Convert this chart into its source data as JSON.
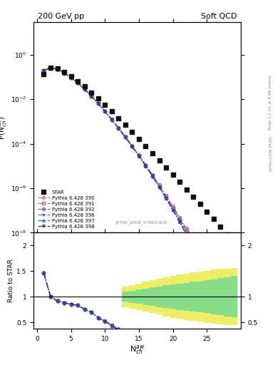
{
  "title_left": "200 GeV pp",
  "title_right": "Soft QCD",
  "ylabel_main": "P(N$_{ch}^{aw}$)",
  "ylabel_ratio": "Ratio to STAR",
  "xlabel": "N$_{ch}^{aw}$",
  "right_label_top": "Rivet 3.1.10, ≥ 3.4M events",
  "right_label_bot": "[arXiv:1306.3436]",
  "ref_label": "(STAR_2008_S7869363)",
  "ylim_main": [
    1e-08,
    30
  ],
  "ylim_ratio": [
    0.38,
    2.25
  ],
  "xlim": [
    -0.5,
    30
  ],
  "star_x": [
    1,
    2,
    3,
    4,
    5,
    6,
    7,
    8,
    9,
    10,
    11,
    12,
    13,
    14,
    15,
    16,
    17,
    18,
    19,
    20,
    21,
    22,
    23,
    24,
    25,
    26,
    27,
    28,
    29
  ],
  "star_y": [
    0.13,
    0.27,
    0.24,
    0.17,
    0.11,
    0.065,
    0.037,
    0.02,
    0.011,
    0.0055,
    0.0028,
    0.0014,
    0.00069,
    0.00034,
    0.000165,
    8e-05,
    3.8e-05,
    1.8e-05,
    8.5e-06,
    4e-06,
    1.9e-06,
    8.9e-07,
    4.2e-07,
    1.95e-07,
    9e-08,
    4.1e-08,
    1.85e-08,
    8.3e-09,
    3.7e-09
  ],
  "py390_x": [
    1,
    2,
    3,
    4,
    5,
    6,
    7,
    8,
    9,
    10,
    11,
    12,
    13,
    14,
    15,
    16,
    17,
    18,
    19,
    20,
    21,
    22,
    23,
    24
  ],
  "py390_y": [
    0.19,
    0.27,
    0.22,
    0.15,
    0.094,
    0.054,
    0.028,
    0.014,
    0.0065,
    0.0029,
    0.00125,
    0.00052,
    0.00021,
    8.2e-05,
    3.1e-05,
    1.14e-05,
    4e-06,
    1.4e-06,
    4.7e-07,
    1.55e-07,
    5e-08,
    1.55e-08,
    4.5e-09,
    1.2e-09
  ],
  "py391_x": [
    1,
    2,
    3,
    4,
    5,
    6,
    7,
    8,
    9,
    10,
    11,
    12,
    13,
    14,
    15,
    16,
    17,
    18,
    19,
    20,
    21,
    22,
    23
  ],
  "py391_y": [
    0.19,
    0.27,
    0.22,
    0.15,
    0.094,
    0.054,
    0.028,
    0.014,
    0.0065,
    0.0029,
    0.00125,
    0.00051,
    0.000205,
    8e-05,
    3e-05,
    1.1e-05,
    3.8e-06,
    1.3e-06,
    4.3e-07,
    1.4e-07,
    4.4e-08,
    1.35e-08,
    3.9e-09
  ],
  "py392_x": [
    1,
    2,
    3,
    4,
    5,
    6,
    7,
    8,
    9,
    10,
    11,
    12,
    13,
    14,
    15,
    16,
    17,
    18,
    19,
    20,
    21,
    22,
    23,
    24
  ],
  "py392_y": [
    0.19,
    0.27,
    0.22,
    0.15,
    0.094,
    0.054,
    0.028,
    0.014,
    0.0065,
    0.00285,
    0.00122,
    0.0005,
    0.0002,
    7.7e-05,
    2.9e-05,
    1.05e-05,
    3.6e-06,
    1.2e-06,
    3.9e-07,
    1.25e-07,
    3.9e-08,
    1.18e-08,
    3.4e-09,
    9e-10
  ],
  "py396_x": [
    1,
    2,
    3,
    4,
    5,
    6,
    7,
    8,
    9,
    10,
    11,
    12,
    13,
    14,
    15,
    16,
    17,
    18,
    19,
    20,
    21,
    22
  ],
  "py396_y": [
    0.19,
    0.27,
    0.22,
    0.15,
    0.094,
    0.054,
    0.028,
    0.014,
    0.0065,
    0.00288,
    0.00123,
    0.0005,
    0.000198,
    7.6e-05,
    2.82e-05,
    1.01e-05,
    3.45e-06,
    1.13e-06,
    3.55e-07,
    1.07e-07,
    3.08e-08,
    8.4e-09
  ],
  "py397_x": [
    1,
    2,
    3,
    4,
    5,
    6,
    7,
    8,
    9,
    10,
    11,
    12,
    13,
    14,
    15,
    16,
    17,
    18,
    19,
    20,
    21,
    22
  ],
  "py397_y": [
    0.19,
    0.27,
    0.22,
    0.15,
    0.094,
    0.054,
    0.028,
    0.014,
    0.0065,
    0.00288,
    0.00123,
    0.0005,
    0.000198,
    7.6e-05,
    2.82e-05,
    1.01e-05,
    3.45e-06,
    1.13e-06,
    3.55e-07,
    1.07e-07,
    3.08e-08,
    8.4e-09
  ],
  "py398_x": [
    1,
    2,
    3,
    4,
    5,
    6,
    7,
    8,
    9,
    10,
    11,
    12,
    13,
    14,
    15,
    16,
    17,
    18,
    19,
    20,
    21,
    22,
    23,
    24,
    25
  ],
  "py398_y": [
    0.19,
    0.27,
    0.22,
    0.15,
    0.094,
    0.054,
    0.028,
    0.014,
    0.0065,
    0.00287,
    0.00122,
    0.000495,
    0.000197,
    7.5e-05,
    2.8e-05,
    1e-05,
    3.4e-06,
    1.1e-06,
    3.5e-07,
    1.05e-07,
    3.05e-08,
    8.2e-09,
    2.1e-09,
    5.2e-10,
    1.2e-10
  ],
  "py390_color": "#c07090",
  "py391_color": "#b06898",
  "py392_color": "#8060b0",
  "py396_color": "#508098",
  "py397_color": "#4070a8",
  "py398_color": "#303888",
  "star_color": "#111111",
  "green_band_color": "#88dd88",
  "yellow_band_color": "#eeee66",
  "band_x": [
    13,
    14,
    15,
    16,
    17,
    18,
    19,
    20,
    21,
    22,
    23,
    24,
    25,
    26,
    27,
    28,
    29
  ],
  "band_green_lo": [
    0.9,
    0.88,
    0.86,
    0.84,
    0.82,
    0.8,
    0.78,
    0.76,
    0.74,
    0.73,
    0.71,
    0.7,
    0.68,
    0.66,
    0.64,
    0.62,
    0.6
  ],
  "band_green_hi": [
    1.1,
    1.12,
    1.14,
    1.16,
    1.18,
    1.2,
    1.22,
    1.24,
    1.26,
    1.27,
    1.29,
    1.3,
    1.32,
    1.34,
    1.36,
    1.38,
    1.4
  ],
  "band_yellow_lo": [
    0.8,
    0.77,
    0.74,
    0.71,
    0.68,
    0.65,
    0.62,
    0.59,
    0.57,
    0.55,
    0.53,
    0.51,
    0.49,
    0.47,
    0.46,
    0.45,
    0.44
  ],
  "band_yellow_hi": [
    1.2,
    1.23,
    1.26,
    1.29,
    1.32,
    1.35,
    1.38,
    1.41,
    1.43,
    1.45,
    1.47,
    1.49,
    1.51,
    1.53,
    1.54,
    1.55,
    1.56
  ]
}
